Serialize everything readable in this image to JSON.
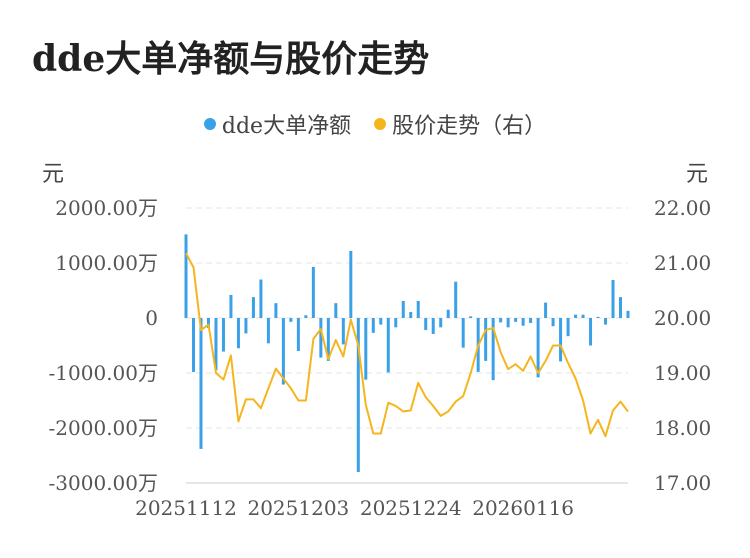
{
  "chart_data": {
    "type": "bar+line",
    "title": "dde大单净额与股价走势",
    "legend": [
      {
        "name": "dde大单净额",
        "color": "#3aa0e8"
      },
      {
        "name": "股价走势（右）",
        "color": "#f5b51e"
      }
    ],
    "y_left_unit": "元",
    "y_right_unit": "元",
    "y_left_ticks": [
      "2000.00万",
      "1000.00万",
      "0",
      "-1000.00万",
      "-2000.00万",
      "-3000.00万"
    ],
    "y_left_range": [
      -3000,
      2000
    ],
    "y_right_ticks": [
      "22.00",
      "21.00",
      "20.00",
      "19.00",
      "18.00",
      "17.00"
    ],
    "y_right_range": [
      17,
      22
    ],
    "x_ticks": [
      {
        "label": "20251112",
        "index": 0
      },
      {
        "label": "20251203",
        "index": 15
      },
      {
        "label": "20251224",
        "index": 30
      },
      {
        "label": "20260116",
        "index": 45
      }
    ],
    "bar_color": "#3aa0e8",
    "line_color": "#f5b51e",
    "net_amount_wan": [
      1520,
      -980,
      -2380,
      -180,
      -950,
      -610,
      420,
      -550,
      -280,
      380,
      700,
      -460,
      270,
      -1210,
      -70,
      -600,
      50,
      930,
      -720,
      -780,
      270,
      -480,
      1220,
      -2800,
      -1120,
      -270,
      -120,
      -990,
      -170,
      310,
      110,
      310,
      -220,
      -290,
      -170,
      150,
      660,
      -540,
      30,
      -980,
      -780,
      -1130,
      -80,
      -170,
      -70,
      -140,
      -90,
      -1080,
      280,
      -150,
      -790,
      -330,
      60,
      60,
      -500,
      20,
      -120,
      690,
      380,
      130
    ],
    "price": [
      21.18,
      20.92,
      19.78,
      19.88,
      19.0,
      18.88,
      19.32,
      18.12,
      18.52,
      18.52,
      18.36,
      18.72,
      19.08,
      18.9,
      18.72,
      18.5,
      18.5,
      19.62,
      19.8,
      19.25,
      19.6,
      19.3,
      19.97,
      19.5,
      18.42,
      17.9,
      17.9,
      18.46,
      18.4,
      18.3,
      18.32,
      18.82,
      18.56,
      18.4,
      18.22,
      18.3,
      18.48,
      18.58,
      19.0,
      19.5,
      19.78,
      19.82,
      19.38,
      19.07,
      19.16,
      19.04,
      19.3,
      19.0,
      19.22,
      19.5,
      19.5,
      19.18,
      18.9,
      18.5,
      17.9,
      18.15,
      17.85,
      18.32,
      18.48,
      18.3
    ]
  }
}
